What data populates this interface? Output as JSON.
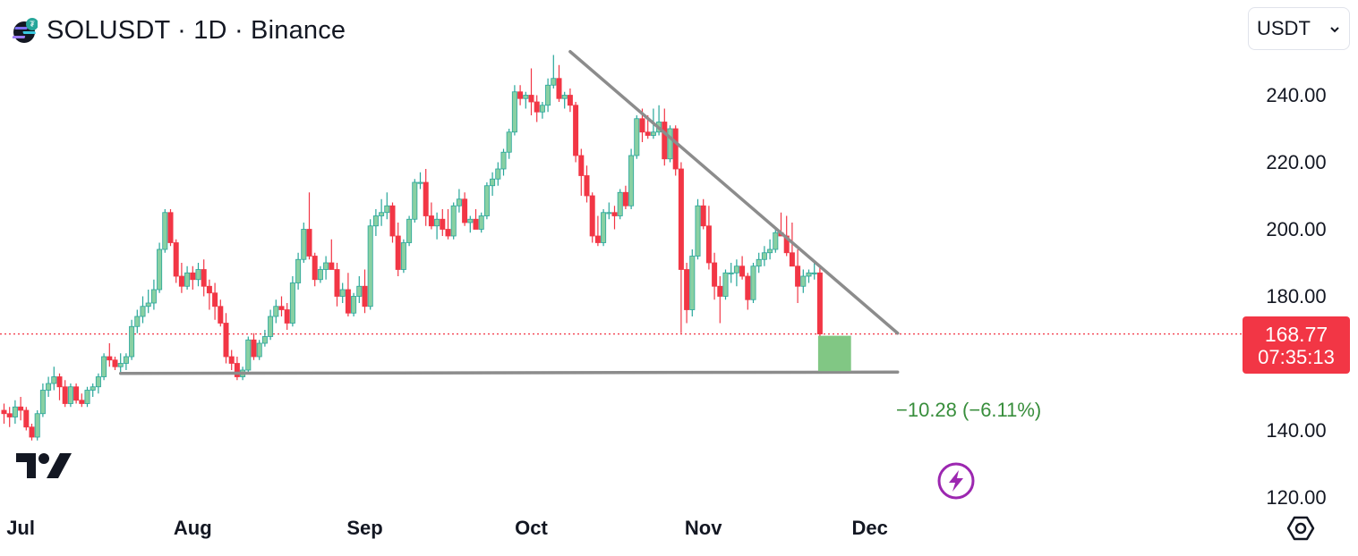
{
  "header": {
    "title": "SOLUSDT · 1D · Binance",
    "coin_icon": "solana-coin-icon"
  },
  "currency_selector": {
    "value": "USDT",
    "icon": "chevron-down-icon"
  },
  "price_label": {
    "price": "168.77",
    "countdown": "07:35:13",
    "color": "#f23645"
  },
  "measure_label": "−10.28 (−6.11%)",
  "colors": {
    "up": "#26a69a",
    "up_fill": "#89d0a3",
    "down": "#f23645",
    "trendline": "#8c8c8c",
    "measure_box": "#81c784",
    "measure_text": "#388e3c",
    "alert_icon": "#9c27b0"
  },
  "chart_data": {
    "type": "candlestick",
    "symbol": "SOLUSDT",
    "interval": "1D",
    "exchange": "Binance",
    "ylim": [
      120,
      245
    ],
    "y_ticks": [
      "240.00",
      "220.00",
      "200.00",
      "180.00",
      "140.00",
      "120.00"
    ],
    "x_ticks": [
      "Jul",
      "Aug",
      "Sep",
      "Oct",
      "Nov",
      "Dec"
    ],
    "candles": [
      {
        "d": "Jun 28",
        "o": 146,
        "h": 148,
        "l": 142,
        "c": 145
      },
      {
        "d": "Jun 29",
        "o": 145,
        "h": 147,
        "l": 141,
        "c": 144
      },
      {
        "d": "Jun 30",
        "o": 144,
        "h": 149,
        "l": 142,
        "c": 147
      },
      {
        "d": "Jul 01",
        "o": 147,
        "h": 150,
        "l": 143,
        "c": 146
      },
      {
        "d": "Jul 02",
        "o": 146,
        "h": 147,
        "l": 140,
        "c": 141
      },
      {
        "d": "Jul 03",
        "o": 141,
        "h": 142,
        "l": 137,
        "c": 138
      },
      {
        "d": "Jul 04",
        "o": 138,
        "h": 146,
        "l": 137,
        "c": 145
      },
      {
        "d": "Jul 05",
        "o": 145,
        "h": 154,
        "l": 144,
        "c": 152
      },
      {
        "d": "Jul 06",
        "o": 152,
        "h": 156,
        "l": 150,
        "c": 154
      },
      {
        "d": "Jul 07",
        "o": 154,
        "h": 159,
        "l": 152,
        "c": 156
      },
      {
        "d": "Jul 08",
        "o": 156,
        "h": 157,
        "l": 149,
        "c": 153
      },
      {
        "d": "Jul 09",
        "o": 153,
        "h": 155,
        "l": 147,
        "c": 148
      },
      {
        "d": "Jul 10",
        "o": 148,
        "h": 154,
        "l": 147,
        "c": 153
      },
      {
        "d": "Jul 11",
        "o": 153,
        "h": 154,
        "l": 148,
        "c": 149
      },
      {
        "d": "Jul 12",
        "o": 149,
        "h": 151,
        "l": 147,
        "c": 148
      },
      {
        "d": "Jul 13",
        "o": 148,
        "h": 153,
        "l": 147,
        "c": 152
      },
      {
        "d": "Jul 14",
        "o": 152,
        "h": 154,
        "l": 150,
        "c": 153
      },
      {
        "d": "Jul 15",
        "o": 153,
        "h": 157,
        "l": 151,
        "c": 156
      },
      {
        "d": "Jul 16",
        "o": 156,
        "h": 163,
        "l": 155,
        "c": 162
      },
      {
        "d": "Jul 17",
        "o": 162,
        "h": 166,
        "l": 159,
        "c": 161
      },
      {
        "d": "Jul 18",
        "o": 161,
        "h": 162,
        "l": 158,
        "c": 159
      },
      {
        "d": "Jul 19",
        "o": 159,
        "h": 163,
        "l": 157,
        "c": 160
      },
      {
        "d": "Jul 20",
        "o": 160,
        "h": 163,
        "l": 158,
        "c": 162
      },
      {
        "d": "Jul 21",
        "o": 162,
        "h": 173,
        "l": 161,
        "c": 171
      },
      {
        "d": "Jul 22",
        "o": 171,
        "h": 176,
        "l": 169,
        "c": 174
      },
      {
        "d": "Jul 23",
        "o": 174,
        "h": 180,
        "l": 172,
        "c": 177
      },
      {
        "d": "Jul 24",
        "o": 177,
        "h": 182,
        "l": 175,
        "c": 178
      },
      {
        "d": "Jul 25",
        "o": 178,
        "h": 185,
        "l": 176,
        "c": 182
      },
      {
        "d": "Jul 26",
        "o": 182,
        "h": 196,
        "l": 181,
        "c": 194
      },
      {
        "d": "Jul 27",
        "o": 194,
        "h": 206,
        "l": 193,
        "c": 205
      },
      {
        "d": "Jul 28",
        "o": 205,
        "h": 206,
        "l": 195,
        "c": 196
      },
      {
        "d": "Jul 29",
        "o": 196,
        "h": 197,
        "l": 184,
        "c": 186
      },
      {
        "d": "Jul 30",
        "o": 186,
        "h": 190,
        "l": 181,
        "c": 183
      },
      {
        "d": "Jul 31",
        "o": 183,
        "h": 189,
        "l": 182,
        "c": 187
      },
      {
        "d": "Aug 01",
        "o": 187,
        "h": 189,
        "l": 182,
        "c": 185
      },
      {
        "d": "Aug 02",
        "o": 185,
        "h": 190,
        "l": 183,
        "c": 188
      },
      {
        "d": "Aug 03",
        "o": 188,
        "h": 191,
        "l": 180,
        "c": 183
      },
      {
        "d": "Aug 04",
        "o": 183,
        "h": 185,
        "l": 176,
        "c": 181
      },
      {
        "d": "Aug 05",
        "o": 181,
        "h": 184,
        "l": 173,
        "c": 177
      },
      {
        "d": "Aug 06",
        "o": 177,
        "h": 179,
        "l": 171,
        "c": 172
      },
      {
        "d": "Aug 07",
        "o": 172,
        "h": 175,
        "l": 160,
        "c": 162
      },
      {
        "d": "Aug 08",
        "o": 162,
        "h": 164,
        "l": 158,
        "c": 160
      },
      {
        "d": "Aug 09",
        "o": 160,
        "h": 162,
        "l": 155,
        "c": 156
      },
      {
        "d": "Aug 10",
        "o": 156,
        "h": 159,
        "l": 155,
        "c": 158
      },
      {
        "d": "Aug 11",
        "o": 158,
        "h": 168,
        "l": 157,
        "c": 167
      },
      {
        "d": "Aug 12",
        "o": 167,
        "h": 169,
        "l": 161,
        "c": 162
      },
      {
        "d": "Aug 13",
        "o": 162,
        "h": 167,
        "l": 161,
        "c": 166
      },
      {
        "d": "Aug 14",
        "o": 166,
        "h": 170,
        "l": 165,
        "c": 168
      },
      {
        "d": "Aug 15",
        "o": 168,
        "h": 176,
        "l": 167,
        "c": 174
      },
      {
        "d": "Aug 16",
        "o": 174,
        "h": 179,
        "l": 172,
        "c": 177
      },
      {
        "d": "Aug 17",
        "o": 177,
        "h": 180,
        "l": 174,
        "c": 176
      },
      {
        "d": "Aug 18",
        "o": 176,
        "h": 178,
        "l": 170,
        "c": 172
      },
      {
        "d": "Aug 19",
        "o": 172,
        "h": 186,
        "l": 171,
        "c": 184
      },
      {
        "d": "Aug 20",
        "o": 184,
        "h": 193,
        "l": 182,
        "c": 191
      },
      {
        "d": "Aug 21",
        "o": 191,
        "h": 202,
        "l": 190,
        "c": 200
      },
      {
        "d": "Aug 22",
        "o": 200,
        "h": 211,
        "l": 191,
        "c": 192
      },
      {
        "d": "Aug 23",
        "o": 192,
        "h": 193,
        "l": 183,
        "c": 185
      },
      {
        "d": "Aug 24",
        "o": 185,
        "h": 189,
        "l": 184,
        "c": 188
      },
      {
        "d": "Aug 25",
        "o": 188,
        "h": 192,
        "l": 185,
        "c": 190
      },
      {
        "d": "Aug 26",
        "o": 190,
        "h": 197,
        "l": 188,
        "c": 188
      },
      {
        "d": "Aug 27",
        "o": 188,
        "h": 190,
        "l": 177,
        "c": 180
      },
      {
        "d": "Aug 28",
        "o": 180,
        "h": 184,
        "l": 178,
        "c": 182
      },
      {
        "d": "Aug 29",
        "o": 182,
        "h": 187,
        "l": 174,
        "c": 175
      },
      {
        "d": "Aug 30",
        "o": 175,
        "h": 181,
        "l": 174,
        "c": 180
      },
      {
        "d": "Aug 31",
        "o": 180,
        "h": 186,
        "l": 178,
        "c": 183
      },
      {
        "d": "Sep 01",
        "o": 183,
        "h": 188,
        "l": 175,
        "c": 177
      },
      {
        "d": "Sep 02",
        "o": 177,
        "h": 203,
        "l": 176,
        "c": 201
      },
      {
        "d": "Sep 03",
        "o": 201,
        "h": 206,
        "l": 198,
        "c": 204
      },
      {
        "d": "Sep 04",
        "o": 204,
        "h": 209,
        "l": 201,
        "c": 205
      },
      {
        "d": "Sep 05",
        "o": 205,
        "h": 211,
        "l": 203,
        "c": 207
      },
      {
        "d": "Sep 06",
        "o": 207,
        "h": 208,
        "l": 196,
        "c": 198
      },
      {
        "d": "Sep 07",
        "o": 198,
        "h": 202,
        "l": 186,
        "c": 188
      },
      {
        "d": "Sep 08",
        "o": 188,
        "h": 197,
        "l": 187,
        "c": 196
      },
      {
        "d": "Sep 09",
        "o": 196,
        "h": 204,
        "l": 195,
        "c": 203
      },
      {
        "d": "Sep 10",
        "o": 203,
        "h": 215,
        "l": 202,
        "c": 214
      },
      {
        "d": "Sep 11",
        "o": 214,
        "h": 217,
        "l": 212,
        "c": 214
      },
      {
        "d": "Sep 12",
        "o": 214,
        "h": 218,
        "l": 201,
        "c": 204
      },
      {
        "d": "Sep 13",
        "o": 204,
        "h": 208,
        "l": 200,
        "c": 201
      },
      {
        "d": "Sep 14",
        "o": 201,
        "h": 205,
        "l": 197,
        "c": 203
      },
      {
        "d": "Sep 15",
        "o": 203,
        "h": 206,
        "l": 198,
        "c": 200
      },
      {
        "d": "Sep 16",
        "o": 200,
        "h": 206,
        "l": 197,
        "c": 198
      },
      {
        "d": "Sep 17",
        "o": 198,
        "h": 208,
        "l": 197,
        "c": 207
      },
      {
        "d": "Sep 18",
        "o": 207,
        "h": 212,
        "l": 205,
        "c": 209
      },
      {
        "d": "Sep 19",
        "o": 209,
        "h": 211,
        "l": 201,
        "c": 202
      },
      {
        "d": "Sep 20",
        "o": 202,
        "h": 204,
        "l": 199,
        "c": 203
      },
      {
        "d": "Sep 21",
        "o": 203,
        "h": 206,
        "l": 200,
        "c": 200
      },
      {
        "d": "Sep 22",
        "o": 200,
        "h": 205,
        "l": 199,
        "c": 204
      },
      {
        "d": "Sep 23",
        "o": 204,
        "h": 214,
        "l": 203,
        "c": 213
      },
      {
        "d": "Sep 24",
        "o": 213,
        "h": 217,
        "l": 210,
        "c": 215
      },
      {
        "d": "Sep 25",
        "o": 215,
        "h": 220,
        "l": 213,
        "c": 218
      },
      {
        "d": "Sep 26",
        "o": 218,
        "h": 224,
        "l": 216,
        "c": 223
      },
      {
        "d": "Sep 27",
        "o": 223,
        "h": 230,
        "l": 221,
        "c": 229
      },
      {
        "d": "Sep 28",
        "o": 229,
        "h": 243,
        "l": 228,
        "c": 241
      },
      {
        "d": "Sep 29",
        "o": 241,
        "h": 243,
        "l": 237,
        "c": 239
      },
      {
        "d": "Sep 30",
        "o": 239,
        "h": 241,
        "l": 236,
        "c": 240
      },
      {
        "d": "Oct 01",
        "o": 240,
        "h": 248,
        "l": 234,
        "c": 238
      },
      {
        "d": "Oct 02",
        "o": 238,
        "h": 240,
        "l": 232,
        "c": 235
      },
      {
        "d": "Oct 03",
        "o": 235,
        "h": 238,
        "l": 233,
        "c": 237
      },
      {
        "d": "Oct 04",
        "o": 237,
        "h": 245,
        "l": 235,
        "c": 243
      },
      {
        "d": "Oct 05",
        "o": 243,
        "h": 252,
        "l": 242,
        "c": 245
      },
      {
        "d": "Oct 06",
        "o": 245,
        "h": 249,
        "l": 238,
        "c": 239
      },
      {
        "d": "Oct 07",
        "o": 239,
        "h": 241,
        "l": 236,
        "c": 240
      },
      {
        "d": "Oct 08",
        "o": 240,
        "h": 242,
        "l": 235,
        "c": 237
      },
      {
        "d": "Oct 09",
        "o": 237,
        "h": 238,
        "l": 220,
        "c": 222
      },
      {
        "d": "Oct 10",
        "o": 222,
        "h": 224,
        "l": 210,
        "c": 216
      },
      {
        "d": "Oct 11",
        "o": 216,
        "h": 219,
        "l": 208,
        "c": 210
      },
      {
        "d": "Oct 12",
        "o": 210,
        "h": 211,
        "l": 196,
        "c": 198
      },
      {
        "d": "Oct 13",
        "o": 198,
        "h": 204,
        "l": 195,
        "c": 196
      },
      {
        "d": "Oct 14",
        "o": 196,
        "h": 206,
        "l": 195,
        "c": 205
      },
      {
        "d": "Oct 15",
        "o": 205,
        "h": 208,
        "l": 203,
        "c": 205
      },
      {
        "d": "Oct 16",
        "o": 205,
        "h": 207,
        "l": 200,
        "c": 204
      },
      {
        "d": "Oct 17",
        "o": 204,
        "h": 212,
        "l": 203,
        "c": 211
      },
      {
        "d": "Oct 18",
        "o": 211,
        "h": 213,
        "l": 206,
        "c": 207
      },
      {
        "d": "Oct 19",
        "o": 207,
        "h": 224,
        "l": 206,
        "c": 222
      },
      {
        "d": "Oct 20",
        "o": 222,
        "h": 234,
        "l": 221,
        "c": 233
      },
      {
        "d": "Oct 21",
        "o": 233,
        "h": 236,
        "l": 226,
        "c": 229
      },
      {
        "d": "Oct 22",
        "o": 229,
        "h": 234,
        "l": 227,
        "c": 228
      },
      {
        "d": "Oct 23",
        "o": 228,
        "h": 236,
        "l": 227,
        "c": 229
      },
      {
        "d": "Oct 24",
        "o": 229,
        "h": 237,
        "l": 228,
        "c": 232
      },
      {
        "d": "Oct 25",
        "o": 232,
        "h": 236,
        "l": 219,
        "c": 221
      },
      {
        "d": "Oct 26",
        "o": 221,
        "h": 231,
        "l": 220,
        "c": 230
      },
      {
        "d": "Oct 27",
        "o": 230,
        "h": 231,
        "l": 216,
        "c": 218
      },
      {
        "d": "Oct 28",
        "o": 218,
        "h": 220,
        "l": 169,
        "c": 188
      },
      {
        "d": "Oct 29",
        "o": 188,
        "h": 190,
        "l": 172,
        "c": 176
      },
      {
        "d": "Oct 30",
        "o": 176,
        "h": 194,
        "l": 174,
        "c": 192
      },
      {
        "d": "Oct 31",
        "o": 192,
        "h": 209,
        "l": 191,
        "c": 207
      },
      {
        "d": "Nov 01",
        "o": 207,
        "h": 209,
        "l": 200,
        "c": 201
      },
      {
        "d": "Nov 02",
        "o": 201,
        "h": 207,
        "l": 188,
        "c": 190
      },
      {
        "d": "Nov 03",
        "o": 190,
        "h": 193,
        "l": 179,
        "c": 183
      },
      {
        "d": "Nov 04",
        "o": 183,
        "h": 186,
        "l": 172,
        "c": 180
      },
      {
        "d": "Nov 05",
        "o": 180,
        "h": 188,
        "l": 179,
        "c": 187
      },
      {
        "d": "Nov 06",
        "o": 187,
        "h": 190,
        "l": 184,
        "c": 187
      },
      {
        "d": "Nov 07",
        "o": 187,
        "h": 191,
        "l": 183,
        "c": 189
      },
      {
        "d": "Nov 08",
        "o": 189,
        "h": 192,
        "l": 185,
        "c": 186
      },
      {
        "d": "Nov 09",
        "o": 186,
        "h": 187,
        "l": 176,
        "c": 179
      },
      {
        "d": "Nov 10",
        "o": 179,
        "h": 190,
        "l": 178,
        "c": 189
      },
      {
        "d": "Nov 11",
        "o": 189,
        "h": 193,
        "l": 187,
        "c": 191
      },
      {
        "d": "Nov 12",
        "o": 191,
        "h": 195,
        "l": 189,
        "c": 193
      },
      {
        "d": "Nov 13",
        "o": 193,
        "h": 197,
        "l": 191,
        "c": 194
      },
      {
        "d": "Nov 14",
        "o": 194,
        "h": 200,
        "l": 193,
        "c": 199
      },
      {
        "d": "Nov 15",
        "o": 199,
        "h": 205,
        "l": 198,
        "c": 198
      },
      {
        "d": "Nov 16",
        "o": 198,
        "h": 204,
        "l": 192,
        "c": 193
      },
      {
        "d": "Nov 17",
        "o": 193,
        "h": 202,
        "l": 189,
        "c": 189
      },
      {
        "d": "Nov 18",
        "o": 189,
        "h": 194,
        "l": 178,
        "c": 183
      },
      {
        "d": "Nov 19",
        "o": 183,
        "h": 188,
        "l": 181,
        "c": 186
      },
      {
        "d": "Nov 20",
        "o": 186,
        "h": 188,
        "l": 184,
        "c": 187
      },
      {
        "d": "Nov 21",
        "o": 187,
        "h": 190,
        "l": 185,
        "c": 187
      },
      {
        "d": "Nov 22",
        "o": 187,
        "h": 189,
        "l": 166,
        "c": 168.77
      }
    ],
    "drawings": {
      "descending_trendline": {
        "from": {
          "d": "Oct 08",
          "price": 253
        },
        "to": {
          "d": "Dec 06",
          "price": 169
        }
      },
      "support_line": {
        "from": {
          "d": "Jul 19",
          "price": 157
        },
        "to": {
          "d": "Dec 06",
          "price": 157
        }
      },
      "measure": {
        "from": {
          "d": "Nov 22",
          "price": 168.77
        },
        "to": {
          "d": "Nov 26",
          "price": 158.49
        },
        "change": -10.28,
        "pct": -6.11
      }
    },
    "last_price_line": 168.77
  }
}
